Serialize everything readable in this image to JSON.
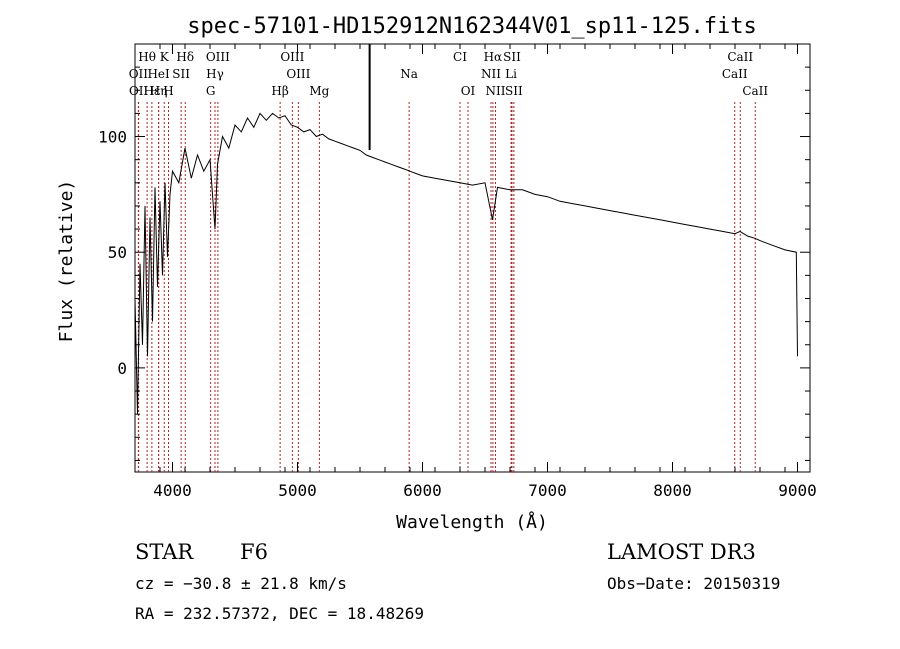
{
  "chart_data": {
    "type": "line",
    "title": "spec-57101-HD152912N162344V01_sp11-125.fits",
    "xlabel": "Wavelength (Å)",
    "ylabel": "Flux (relative)",
    "xlim": [
      3700,
      9100
    ],
    "ylim": [
      -45,
      140
    ],
    "x_ticks": [
      4000,
      5000,
      6000,
      7000,
      8000,
      9000
    ],
    "y_ticks": [
      0,
      50,
      100
    ],
    "series": [
      {
        "name": "spectrum",
        "x": [
          3700,
          3720,
          3740,
          3760,
          3780,
          3800,
          3820,
          3840,
          3860,
          3880,
          3900,
          3920,
          3940,
          3960,
          3980,
          4000,
          4050,
          4100,
          4150,
          4200,
          4250,
          4300,
          4340,
          4360,
          4400,
          4450,
          4500,
          4550,
          4600,
          4650,
          4700,
          4750,
          4800,
          4850,
          4900,
          4950,
          5000,
          5050,
          5100,
          5150,
          5200,
          5250,
          5300,
          5350,
          5400,
          5450,
          5500,
          5550,
          5600,
          5650,
          5700,
          5750,
          5800,
          5850,
          5900,
          5950,
          6000,
          6100,
          6200,
          6300,
          6400,
          6500,
          6560,
          6600,
          6700,
          6800,
          6900,
          7000,
          7100,
          7200,
          7300,
          7400,
          7500,
          7600,
          7700,
          7800,
          7900,
          8000,
          8100,
          8200,
          8300,
          8400,
          8500,
          8540,
          8600,
          8660,
          8700,
          8800,
          8900,
          8990,
          9000
        ],
        "y": [
          30,
          -20,
          45,
          10,
          70,
          5,
          65,
          20,
          78,
          35,
          72,
          40,
          80,
          48,
          75,
          85,
          80,
          95,
          82,
          92,
          85,
          90,
          60,
          88,
          100,
          95,
          105,
          102,
          108,
          104,
          110,
          107,
          110,
          108,
          109,
          105,
          104,
          102,
          103,
          100,
          101,
          99,
          98,
          97,
          96,
          95,
          94,
          92,
          91,
          90,
          89,
          88,
          87,
          86,
          85,
          84,
          83,
          82,
          81,
          80,
          79,
          80,
          64,
          78,
          77,
          77,
          75,
          74,
          72,
          71,
          70,
          69,
          68,
          67,
          66,
          65,
          64,
          63,
          62,
          61,
          60,
          59,
          58,
          59,
          57,
          56,
          55,
          53,
          51,
          50,
          5
        ]
      }
    ],
    "line_labels": [
      {
        "label": "Hθ",
        "x": 3797,
        "row": 1
      },
      {
        "label": "K",
        "x": 3934,
        "row": 1
      },
      {
        "label": "Hδ",
        "x": 4102,
        "row": 1
      },
      {
        "label": "OIII",
        "x": 4363,
        "row": 1
      },
      {
        "label": "OIII",
        "x": 4959,
        "row": 1
      },
      {
        "label": "CI",
        "x": 6300,
        "row": 1
      },
      {
        "label": "Hα",
        "x": 6563,
        "row": 1
      },
      {
        "label": "SII",
        "x": 6716,
        "row": 1
      },
      {
        "label": "CaII",
        "x": 8542,
        "row": 1
      },
      {
        "label": "OII",
        "x": 3727,
        "row": 2
      },
      {
        "label": "HeI",
        "x": 3889,
        "row": 2
      },
      {
        "label": "SII",
        "x": 4069,
        "row": 2
      },
      {
        "label": "Hγ",
        "x": 4340,
        "row": 2
      },
      {
        "label": "OIII",
        "x": 5007,
        "row": 2
      },
      {
        "label": "Na",
        "x": 5893,
        "row": 2
      },
      {
        "label": "NII",
        "x": 6548,
        "row": 2
      },
      {
        "label": "Li",
        "x": 6708,
        "row": 2
      },
      {
        "label": "CaII",
        "x": 8498,
        "row": 2
      },
      {
        "label": "OII",
        "x": 3729,
        "row": 3
      },
      {
        "label": "Hε",
        "x": 3835,
        "row": 3
      },
      {
        "label": "Hη",
        "x": 3889,
        "row": 3
      },
      {
        "label": "H",
        "x": 3968,
        "row": 3
      },
      {
        "label": "G",
        "x": 4305,
        "row": 3
      },
      {
        "label": "Hβ",
        "x": 4861,
        "row": 3
      },
      {
        "label": "Mg",
        "x": 5175,
        "row": 3
      },
      {
        "label": "OI",
        "x": 6364,
        "row": 3
      },
      {
        "label": "NII",
        "x": 6584,
        "row": 3
      },
      {
        "label": "SII",
        "x": 6731,
        "row": 3
      },
      {
        "label": "CaII",
        "x": 8662,
        "row": 3
      }
    ],
    "marker_x": 5577
  },
  "footer": {
    "object_type": "STAR",
    "subclass": "F6",
    "survey": "LAMOST DR3",
    "cz": "cz = −30.8 ± 21.8 km/s",
    "obs_date": "Obs−Date: 20150319",
    "coords": "RA = 232.57372, DEC =  18.48269"
  }
}
